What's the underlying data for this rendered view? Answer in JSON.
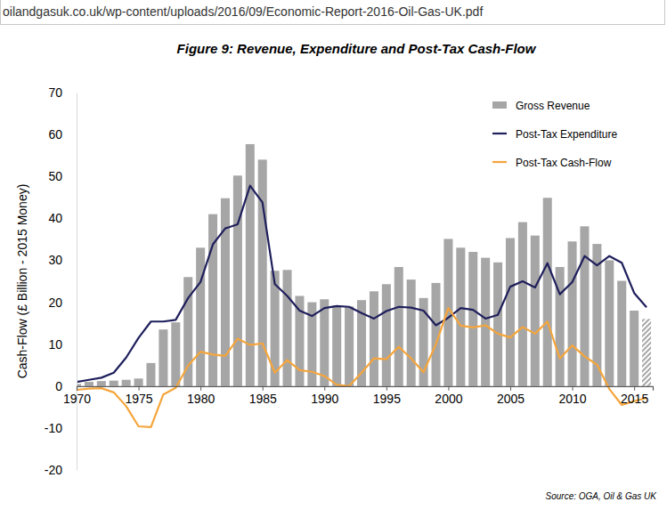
{
  "page": {
    "url": "oilandgasuk.co.uk/wp-content/uploads/2016/09/Economic-Report-2016-Oil-Gas-UK.pdf"
  },
  "chart_data": {
    "type": "bar",
    "title": "Figure 9: Revenue, Expenditure and Post-Tax Cash-Flow",
    "y_label": "Cash-Flow (£ Billion - 2015 Money)",
    "annotations": [
      "Source: OGA, Oil & Gas UK"
    ],
    "x": [
      1970,
      1971,
      1972,
      1973,
      1974,
      1975,
      1976,
      1977,
      1978,
      1979,
      1980,
      1981,
      1982,
      1983,
      1984,
      1985,
      1986,
      1987,
      1988,
      1989,
      1990,
      1991,
      1992,
      1993,
      1994,
      1995,
      1996,
      1997,
      1998,
      1999,
      2000,
      2001,
      2002,
      2003,
      2004,
      2005,
      2006,
      2007,
      2008,
      2009,
      2010,
      2011,
      2012,
      2013,
      2014,
      2015,
      2016
    ],
    "xlim": [
      1970,
      2016.5
    ],
    "xticks": [
      1970,
      1975,
      1980,
      1985,
      1990,
      1995,
      2000,
      2005,
      2010,
      2015
    ],
    "ylim": [
      -20,
      70
    ],
    "yticks": [
      -20,
      -10,
      0,
      10,
      20,
      30,
      40,
      50,
      60,
      70
    ],
    "grid": false,
    "legend": "upper right",
    "series": [
      {
        "name": "Gross Revenue",
        "type": "bar",
        "color": "#a6a6a6",
        "values": [
          0.5,
          1.0,
          1.2,
          1.3,
          1.5,
          1.8,
          5.5,
          13.5,
          15.2,
          26,
          33,
          41,
          44.8,
          50.2,
          57.7,
          54,
          27.5,
          27.7,
          21.5,
          20,
          20.7,
          19.2,
          19,
          20.5,
          22.6,
          24.3,
          28.4,
          25.4,
          21,
          24.6,
          35.1,
          33,
          32,
          30.6,
          29.5,
          35.3,
          39.1,
          35.9,
          44.9,
          28.4,
          34.5,
          38.1,
          33.9,
          30,
          25.1,
          18,
          16
        ]
      },
      {
        "name": "Post-Tax Expenditure",
        "type": "line",
        "color": "#1f1f5c",
        "values": [
          1.0,
          1.5,
          2.0,
          3.2,
          6.8,
          11.5,
          15.4,
          15.4,
          15.8,
          21,
          24.8,
          33.8,
          37.6,
          38.6,
          47.8,
          43.8,
          24.3,
          21.5,
          18,
          16.7,
          18.6,
          19.1,
          18.9,
          17.4,
          16.1,
          17.9,
          18.9,
          18.7,
          18,
          14.5,
          16.3,
          18.6,
          18.2,
          16.1,
          17,
          23.7,
          25,
          23.5,
          29.3,
          21.9,
          24.8,
          31,
          28.8,
          31,
          29.4,
          22.2,
          18.8
        ]
      },
      {
        "name": "Post-Tax Cash-Flow",
        "type": "line",
        "color": "#f5a53b",
        "values": [
          -0.9,
          -0.6,
          -0.5,
          -1.5,
          -4.8,
          -9.6,
          -9.8,
          -2,
          -0.4,
          4.9,
          8.2,
          7.5,
          7.2,
          11.3,
          9.8,
          10.2,
          3.2,
          6.2,
          3.8,
          3.4,
          2.4,
          0.3,
          0,
          3.2,
          6.6,
          6.4,
          9.4,
          6.6,
          3.3,
          10,
          18.6,
          14.4,
          14,
          14.5,
          12.5,
          11.6,
          14.1,
          12.5,
          15.4,
          6.6,
          9.7,
          7.1,
          5.1,
          -0.7,
          -4.5,
          -3.6,
          -2.8
        ]
      }
    ]
  }
}
